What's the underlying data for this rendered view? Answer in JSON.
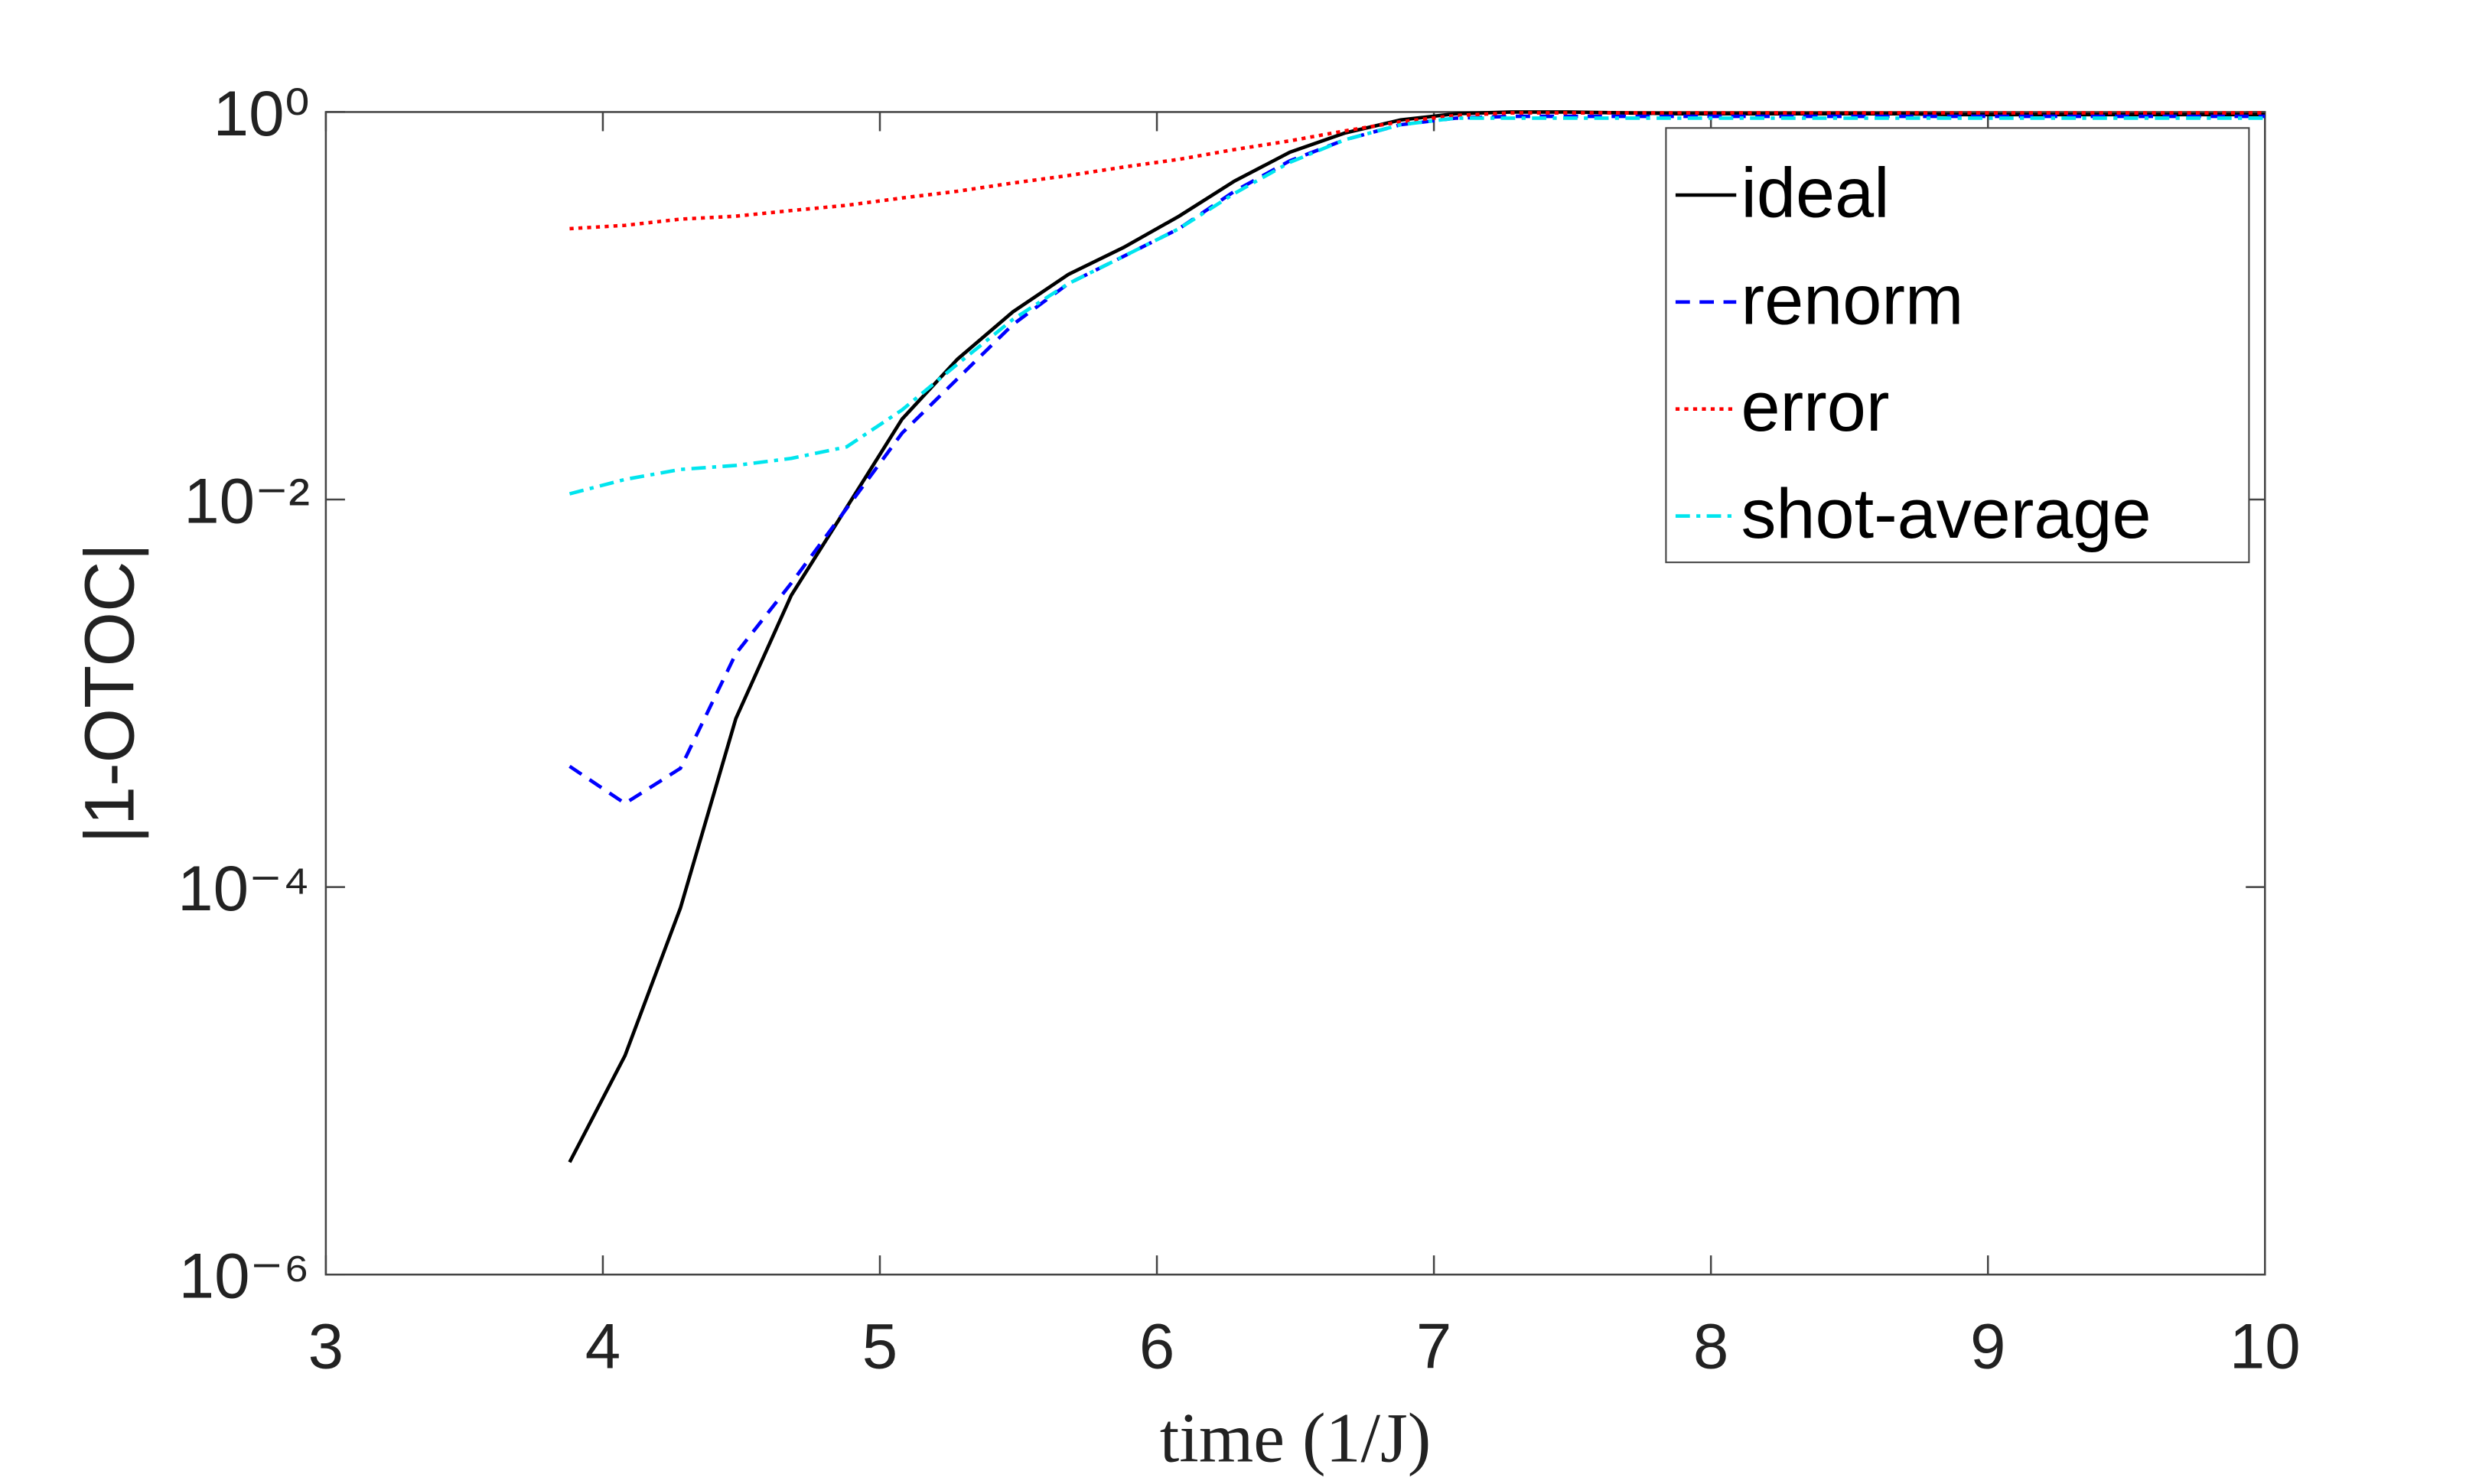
{
  "chart_data": {
    "type": "line",
    "xlabel": "time (1/J)",
    "ylabel": "|1-OTOC|",
    "xlim": [
      3,
      10
    ],
    "xticks": [
      3,
      4,
      5,
      6,
      7,
      8,
      9,
      10
    ],
    "ylim": [
      1e-06,
      1
    ],
    "yticks": [
      {
        "value": 1e-06,
        "label": "10⁻⁶"
      },
      {
        "value": 0.0001,
        "label": "10⁻⁴"
      },
      {
        "value": 0.01,
        "label": "10⁻²"
      },
      {
        "value": 1,
        "label": "10⁰"
      }
    ],
    "log_y": true,
    "grid": false,
    "legend": "northeast",
    "x": [
      3.88,
      4.08,
      4.28,
      4.48,
      4.68,
      4.88,
      5.08,
      5.28,
      5.48,
      5.68,
      5.88,
      6.08,
      6.28,
      6.48,
      6.68,
      6.88,
      7.08,
      7.28,
      7.48,
      7.68,
      7.88,
      8.08,
      8.28,
      8.48,
      8.68,
      8.88,
      9.08,
      9.28,
      9.48,
      9.68,
      9.88,
      10
    ],
    "series": [
      {
        "name": "ideal",
        "color": "#000000",
        "dash": "solid",
        "values": [
          3.8e-06,
          1.35e-05,
          7.8e-05,
          0.00074,
          0.0032,
          0.0091,
          0.026,
          0.053,
          0.093,
          0.145,
          0.2,
          0.29,
          0.44,
          0.62,
          0.78,
          0.91,
          0.98,
          1.0,
          1.0,
          0.99,
          0.98,
          0.98,
          0.98,
          0.98,
          0.98,
          0.97,
          0.97,
          0.97,
          0.97,
          0.97,
          0.97,
          0.97
        ]
      },
      {
        "name": "renorm",
        "color": "#0000ff",
        "dash": "dashed",
        "values": [
          0.00042,
          0.00027,
          0.00041,
          0.0016,
          0.0037,
          0.009,
          0.022,
          0.042,
          0.08,
          0.13,
          0.18,
          0.25,
          0.39,
          0.56,
          0.72,
          0.86,
          0.93,
          0.95,
          0.95,
          0.95,
          0.95,
          0.95,
          0.95,
          0.95,
          0.95,
          0.95,
          0.95,
          0.95,
          0.95,
          0.95,
          0.95,
          0.95
        ]
      },
      {
        "name": "error",
        "color": "#ff0000",
        "dash": "dotted",
        "values": [
          0.25,
          0.26,
          0.28,
          0.29,
          0.31,
          0.33,
          0.36,
          0.39,
          0.43,
          0.47,
          0.52,
          0.57,
          0.64,
          0.71,
          0.8,
          0.89,
          0.96,
          0.99,
          0.99,
          0.99,
          0.99,
          0.99,
          0.99,
          0.99,
          0.99,
          0.99,
          0.99,
          0.99,
          0.99,
          0.99,
          0.99,
          0.99
        ]
      },
      {
        "name": "shot-average",
        "color": "#00e5ee",
        "dash": "dashdot",
        "values": [
          0.0107,
          0.0127,
          0.0143,
          0.015,
          0.0163,
          0.0187,
          0.029,
          0.05,
          0.085,
          0.13,
          0.18,
          0.25,
          0.38,
          0.55,
          0.72,
          0.86,
          0.93,
          0.93,
          0.93,
          0.93,
          0.93,
          0.93,
          0.93,
          0.93,
          0.93,
          0.93,
          0.93,
          0.93,
          0.93,
          0.93,
          0.93,
          0.93
        ]
      }
    ]
  }
}
